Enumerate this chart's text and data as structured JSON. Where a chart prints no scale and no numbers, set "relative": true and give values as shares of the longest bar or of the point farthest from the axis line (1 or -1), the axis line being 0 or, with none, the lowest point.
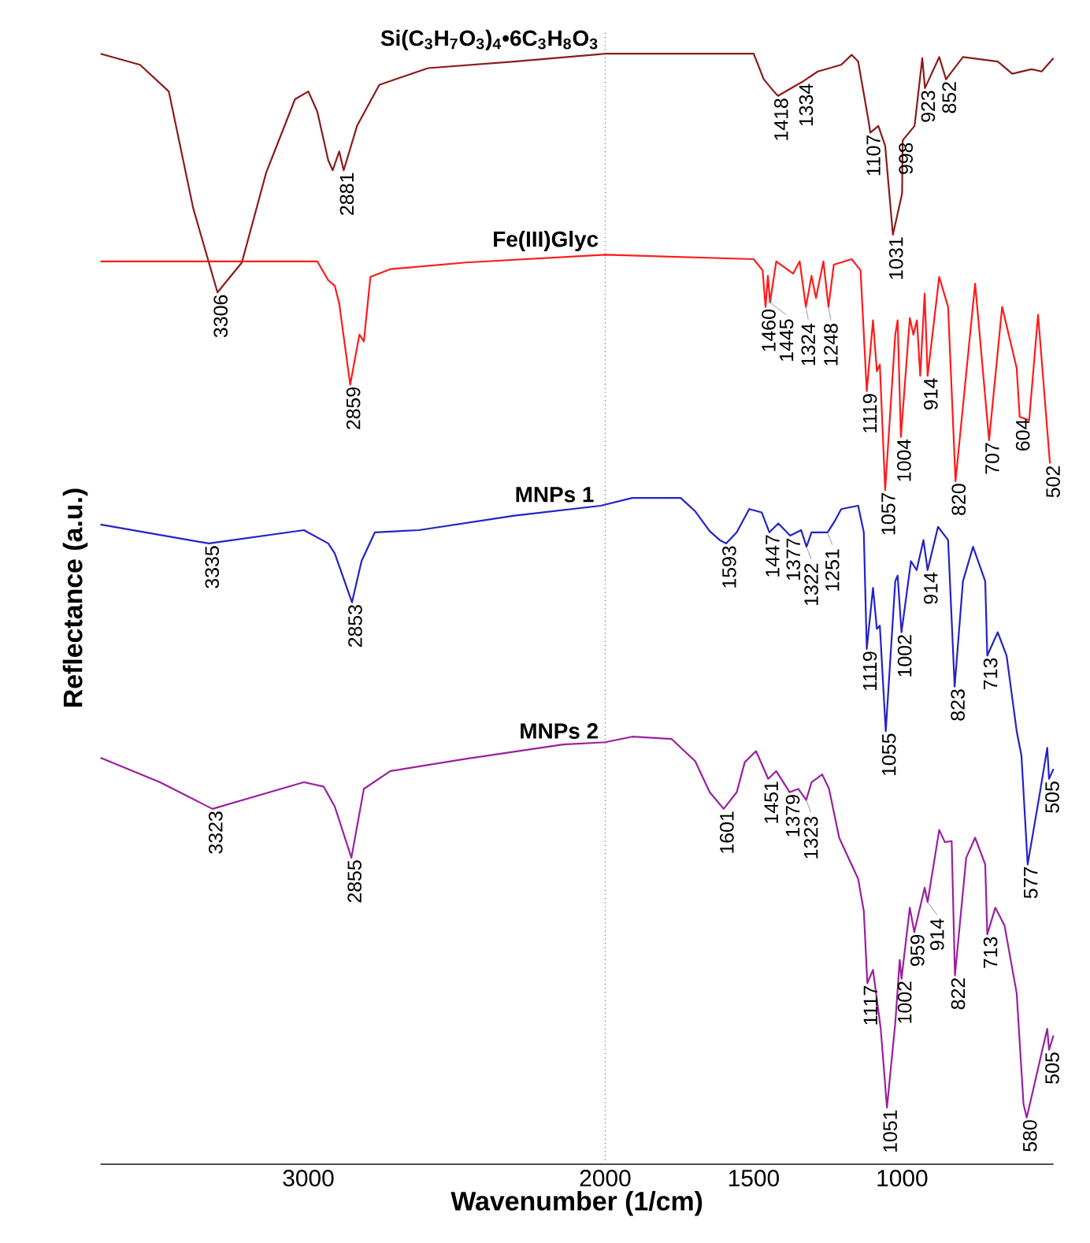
{
  "chart_data": {
    "type": "line",
    "relative": true,
    "xlabel": "Wavenumber (1/cm)",
    "ylabel": "Reflectance (a.u.)",
    "xlim": [
      3700,
      490
    ],
    "xticks": [
      3000,
      2000,
      1500,
      1000
    ],
    "ref_lines": [
      {
        "axis": "x",
        "value": 2000,
        "line_style": "dotted",
        "color": "#666666"
      }
    ],
    "series": [
      {
        "name": "Si(C$_{3}$H$_{7}$O$_{3}$)$_{4}$•6C$_{3}$H$_{8}$O$_{3}$",
        "color": "#8b1a1a",
        "x": [
          3700,
          3567,
          3470,
          3388,
          3306,
          3224,
          3142,
          3045,
          3000,
          2970,
          2933,
          2918,
          2896,
          2881,
          2836,
          2761,
          2597,
          2306,
          2000,
          1500,
          1466,
          1432,
          1418,
          1367,
          1334,
          1284,
          1205,
          1170,
          1148,
          1114,
          1107,
          1080,
          1057,
          1031,
          1000,
          998,
          958,
          932,
          923,
          875,
          852,
          795,
          678,
          629,
          564,
          530,
          490
        ],
        "values": [
          1.0,
          0.99,
          0.966,
          0.861,
          0.785,
          0.812,
          0.893,
          0.959,
          0.966,
          0.948,
          0.904,
          0.895,
          0.912,
          0.895,
          0.935,
          0.972,
          0.987,
          0.993,
          1.0,
          1.0,
          0.977,
          0.966,
          0.962,
          0.97,
          0.975,
          0.984,
          0.99,
          0.999,
          0.993,
          0.941,
          0.929,
          0.935,
          0.917,
          0.837,
          0.874,
          0.922,
          0.935,
          0.996,
          0.969,
          0.997,
          0.977,
          0.997,
          0.993,
          0.982,
          0.986,
          0.984,
          0.996
        ]
      },
      {
        "name": "Fe(III)Glyc",
        "color": "#ff1a1a",
        "x": [
          3700,
          2970,
          2933,
          2911,
          2896,
          2859,
          2828,
          2813,
          2791,
          2724,
          2470,
          2000,
          1500,
          1470,
          1460,
          1452,
          1445,
          1424,
          1367,
          1345,
          1324,
          1305,
          1290,
          1265,
          1248,
          1230,
          1170,
          1140,
          1119,
          1098,
          1085,
          1075,
          1057,
          1023,
          1015,
          1004,
          974,
          962,
          950,
          939,
          924,
          914,
          875,
          845,
          820,
          754,
          707,
          663,
          614,
          604,
          572,
          542,
          502
        ],
        "values": [
          0.813,
          0.813,
          0.796,
          0.791,
          0.775,
          0.702,
          0.747,
          0.741,
          0.799,
          0.806,
          0.812,
          0.819,
          0.815,
          0.805,
          0.772,
          0.8,
          0.776,
          0.813,
          0.802,
          0.813,
          0.772,
          0.8,
          0.78,
          0.813,
          0.772,
          0.81,
          0.815,
          0.805,
          0.696,
          0.76,
          0.714,
          0.72,
          0.607,
          0.747,
          0.76,
          0.655,
          0.762,
          0.747,
          0.76,
          0.71,
          0.784,
          0.71,
          0.799,
          0.772,
          0.615,
          0.793,
          0.652,
          0.772,
          0.717,
          0.673,
          0.67,
          0.765,
          0.631
        ]
      },
      {
        "name": "MNPs 1",
        "color": "#2222c8",
        "x": [
          3700,
          3335,
          3015,
          2933,
          2911,
          2853,
          2821,
          2776,
          2627,
          2306,
          2015,
          1909,
          1746,
          1697,
          1648,
          1614,
          1593,
          1557,
          1515,
          1473,
          1447,
          1417,
          1377,
          1340,
          1322,
          1305,
          1251,
          1225,
          1205,
          1148,
          1129,
          1119,
          1098,
          1085,
          1075,
          1055,
          1023,
          1015,
          1002,
          970,
          951,
          928,
          914,
          879,
          845,
          823,
          795,
          761,
          720,
          713,
          678,
          648,
          614,
          598,
          577,
          538,
          511,
          505,
          490
        ],
        "values": [
          0.576,
          0.559,
          0.571,
          0.559,
          0.55,
          0.506,
          0.543,
          0.569,
          0.571,
          0.584,
          0.593,
          0.6,
          0.6,
          0.588,
          0.57,
          0.562,
          0.559,
          0.569,
          0.59,
          0.587,
          0.569,
          0.577,
          0.566,
          0.571,
          0.556,
          0.569,
          0.569,
          0.58,
          0.59,
          0.593,
          0.569,
          0.464,
          0.519,
          0.482,
          0.485,
          0.39,
          0.525,
          0.53,
          0.479,
          0.543,
          0.535,
          0.562,
          0.535,
          0.574,
          0.562,
          0.43,
          0.525,
          0.556,
          0.525,
          0.458,
          0.479,
          0.458,
          0.39,
          0.368,
          0.27,
          0.331,
          0.375,
          0.347,
          0.356
        ]
      },
      {
        "name": "MNPs 2",
        "color": "#9b1fa0",
        "x": [
          3700,
          3500,
          3323,
          3015,
          2948,
          2911,
          2855,
          2813,
          2724,
          2470,
          2142,
          2000,
          1909,
          1777,
          1697,
          1648,
          1601,
          1557,
          1530,
          1492,
          1451,
          1424,
          1379,
          1350,
          1323,
          1305,
          1269,
          1246,
          1212,
          1148,
          1129,
          1117,
          1098,
          1072,
          1051,
          1023,
          1008,
          1002,
          974,
          959,
          924,
          914,
          875,
          856,
          833,
          822,
          784,
          754,
          720,
          713,
          686,
          655,
          614,
          591,
          580,
          538,
          511,
          505,
          490
        ],
        "values": [
          0.366,
          0.344,
          0.32,
          0.344,
          0.34,
          0.322,
          0.276,
          0.338,
          0.354,
          0.365,
          0.378,
          0.38,
          0.385,
          0.383,
          0.363,
          0.335,
          0.32,
          0.335,
          0.362,
          0.372,
          0.347,
          0.354,
          0.335,
          0.338,
          0.328,
          0.344,
          0.351,
          0.338,
          0.294,
          0.257,
          0.228,
          0.163,
          0.175,
          0.122,
          0.051,
          0.127,
          0.184,
          0.167,
          0.231,
          0.209,
          0.249,
          0.236,
          0.301,
          0.29,
          0.291,
          0.17,
          0.276,
          0.294,
          0.27,
          0.207,
          0.231,
          0.215,
          0.154,
          0.054,
          0.042,
          0.091,
          0.122,
          0.103,
          0.116
        ]
      }
    ],
    "annotations": [
      {
        "text": "3306",
        "x": 3306,
        "y": 0.785
      },
      {
        "text": "2881",
        "x": 2881,
        "y": 0.895
      },
      {
        "text": "1418",
        "x": 1418,
        "y": 0.962
      },
      {
        "text": "1334",
        "x": 1334,
        "y": 0.975
      },
      {
        "text": "1107",
        "x": 1107,
        "y": 0.929
      },
      {
        "text": "1031",
        "x": 1031,
        "y": 0.837
      },
      {
        "text": "998",
        "x": 998,
        "y": 0.922
      },
      {
        "text": "923",
        "x": 923,
        "y": 0.969
      },
      {
        "text": "852",
        "x": 852,
        "y": 0.977
      },
      {
        "text": "2859",
        "x": 2859,
        "y": 0.702
      },
      {
        "text": "1460",
        "x": 1460,
        "y": 0.772
      },
      {
        "text": "1445",
        "x": 1445,
        "y": 0.776
      },
      {
        "text": "1324",
        "x": 1324,
        "y": 0.772
      },
      {
        "text": "1248",
        "x": 1248,
        "y": 0.772
      },
      {
        "text": "1119",
        "x": 1119,
        "y": 0.696
      },
      {
        "text": "1057",
        "x": 1057,
        "y": 0.607
      },
      {
        "text": "1004",
        "x": 1004,
        "y": 0.655
      },
      {
        "text": "914",
        "x": 914,
        "y": 0.71
      },
      {
        "text": "820",
        "x": 820,
        "y": 0.615
      },
      {
        "text": "707",
        "x": 707,
        "y": 0.652
      },
      {
        "text": "604",
        "x": 604,
        "y": 0.673
      },
      {
        "text": "502",
        "x": 502,
        "y": 0.631
      },
      {
        "text": "3335",
        "x": 3335,
        "y": 0.559
      },
      {
        "text": "2853",
        "x": 2853,
        "y": 0.506
      },
      {
        "text": "1593",
        "x": 1593,
        "y": 0.559
      },
      {
        "text": "1447",
        "x": 1447,
        "y": 0.569
      },
      {
        "text": "1377",
        "x": 1377,
        "y": 0.566
      },
      {
        "text": "1322",
        "x": 1322,
        "y": 0.556
      },
      {
        "text": "1251",
        "x": 1251,
        "y": 0.569
      },
      {
        "text": "1119",
        "x": 1119,
        "y": 0.464
      },
      {
        "text": "1055",
        "x": 1055,
        "y": 0.39
      },
      {
        "text": "1002",
        "x": 1002,
        "y": 0.479
      },
      {
        "text": "914",
        "x": 914,
        "y": 0.535
      },
      {
        "text": "823",
        "x": 823,
        "y": 0.43
      },
      {
        "text": "713",
        "x": 713,
        "y": 0.458
      },
      {
        "text": "577",
        "x": 577,
        "y": 0.27
      },
      {
        "text": "505",
        "x": 505,
        "y": 0.347
      },
      {
        "text": "3323",
        "x": 3323,
        "y": 0.32
      },
      {
        "text": "2855",
        "x": 2855,
        "y": 0.276
      },
      {
        "text": "1601",
        "x": 1601,
        "y": 0.32
      },
      {
        "text": "1451",
        "x": 1451,
        "y": 0.347
      },
      {
        "text": "1379",
        "x": 1379,
        "y": 0.335
      },
      {
        "text": "1323",
        "x": 1323,
        "y": 0.328
      },
      {
        "text": "1117",
        "x": 1117,
        "y": 0.163
      },
      {
        "text": "1051",
        "x": 1051,
        "y": 0.051
      },
      {
        "text": "1002",
        "x": 1002,
        "y": 0.167
      },
      {
        "text": "959",
        "x": 959,
        "y": 0.209
      },
      {
        "text": "914",
        "x": 914,
        "y": 0.236
      },
      {
        "text": "822",
        "x": 822,
        "y": 0.17
      },
      {
        "text": "713",
        "x": 713,
        "y": 0.207
      },
      {
        "text": "580",
        "x": 580,
        "y": 0.042
      },
      {
        "text": "505",
        "x": 505,
        "y": 0.103
      }
    ]
  }
}
